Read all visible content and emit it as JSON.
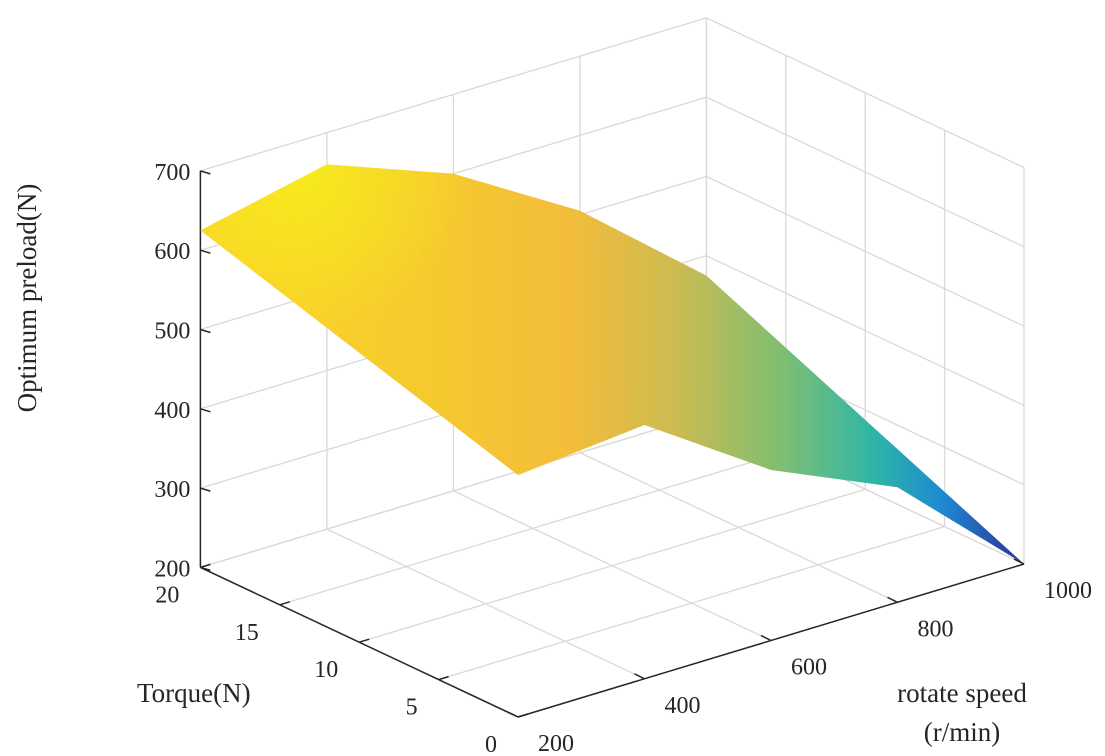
{
  "chart_data": {
    "type": "surface3d",
    "title": "",
    "xlabel": [
      "rotate speed",
      "(r/min)"
    ],
    "ylabel": "Torque(N)",
    "zlabel": "Optimum preload(N)",
    "xlim": [
      200,
      1000
    ],
    "ylim": [
      0,
      20
    ],
    "zlim": [
      200,
      700
    ],
    "x_ticks": [
      200,
      400,
      600,
      800,
      1000
    ],
    "y_ticks": [
      0,
      5,
      10,
      15,
      20
    ],
    "z_ticks": [
      200,
      300,
      400,
      500,
      600,
      700
    ],
    "grid": true,
    "colormap": "parula",
    "surface": [
      {
        "torque": 20,
        "speed": 200,
        "preload": 625
      },
      {
        "torque": 20,
        "speed": 400,
        "preload": 660
      },
      {
        "torque": 20,
        "speed": 600,
        "preload": 600
      },
      {
        "torque": 20,
        "speed": 800,
        "preload": 505
      },
      {
        "torque": 20,
        "speed": 1000,
        "preload": 375
      },
      {
        "torque": 0,
        "speed": 200,
        "preload": 505
      },
      {
        "torque": 0,
        "speed": 400,
        "preload": 520
      },
      {
        "torque": 0,
        "speed": 600,
        "preload": 415
      },
      {
        "torque": 0,
        "speed": 800,
        "preload": 345
      },
      {
        "torque": 0,
        "speed": 1000,
        "preload": 200
      }
    ]
  }
}
